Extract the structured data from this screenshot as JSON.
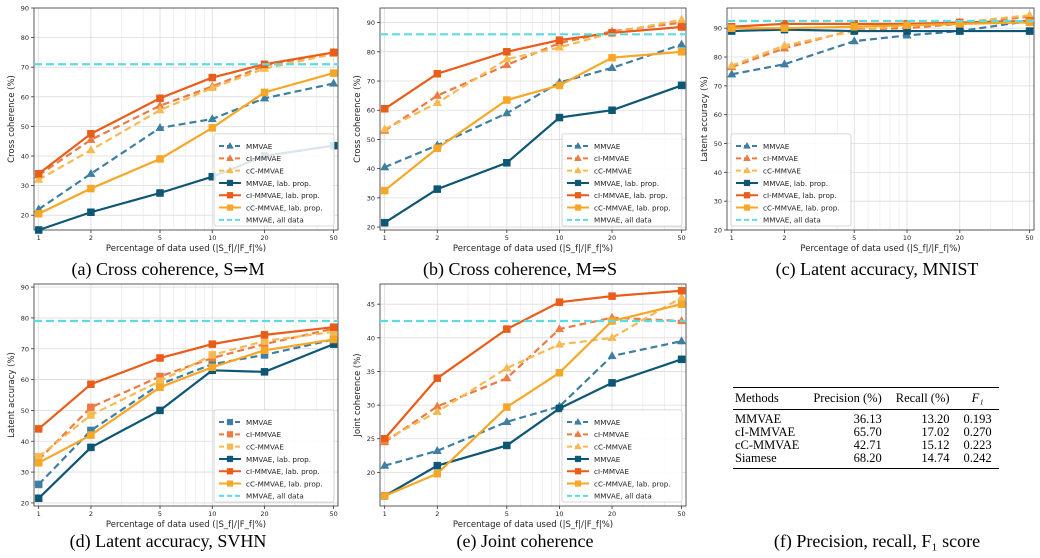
{
  "chart_data": [
    {
      "type": "line",
      "caption": "(a) Cross coherence, S⇒M",
      "ylabel": "Cross coherence (%)",
      "xlabel": "Percentage of data used (|S_f|/|F_f|%)",
      "x": [
        1,
        2,
        5,
        10,
        20,
        50
      ],
      "xticks": [
        "1",
        "2",
        "5",
        "10",
        "20",
        "50"
      ],
      "ylim": [
        15,
        90
      ],
      "yticks": [
        20,
        30,
        40,
        50,
        60,
        70,
        80,
        90
      ],
      "legend": "lower-right",
      "series": [
        {
          "name": "MMVAE",
          "values": [
            22,
            34,
            49.5,
            52.5,
            59.5,
            64.5
          ]
        },
        {
          "name": "cI-MMVAE",
          "values": [
            33.5,
            45.5,
            57,
            63.5,
            70.5,
            75
          ]
        },
        {
          "name": "cC-MMVAE",
          "values": [
            32,
            42,
            55.5,
            63,
            69.5,
            74.5
          ]
        },
        {
          "name": "MMVAE, lab. prop.",
          "values": [
            15,
            21,
            27.5,
            33,
            40,
            43.5
          ]
        },
        {
          "name": "cI-MMVAE, lab. prop.",
          "values": [
            34,
            47.5,
            59.5,
            66.5,
            71,
            75
          ]
        },
        {
          "name": "cC-MMVAE, lab. prop.",
          "values": [
            20.5,
            29,
            39,
            49.5,
            61.5,
            68
          ]
        },
        {
          "name": "MMVAE, all data",
          "values": [
            71,
            71,
            71,
            71,
            71,
            71
          ]
        }
      ]
    },
    {
      "type": "line",
      "caption": "(b) Cross coherence, M⇒S",
      "ylabel": "Cross coherence (%)",
      "xlabel": "Percentage of data used (|S_f|/|F_f|%)",
      "x": [
        1,
        2,
        5,
        10,
        20,
        50
      ],
      "xticks": [
        "1",
        "2",
        "5",
        "10",
        "20",
        "50"
      ],
      "ylim": [
        19,
        95
      ],
      "yticks": [
        20,
        30,
        40,
        50,
        60,
        70,
        80,
        90
      ],
      "legend": "lower-right",
      "series": [
        {
          "name": "MMVAE",
          "values": [
            40.5,
            48,
            59,
            69.5,
            74.5,
            82.5
          ]
        },
        {
          "name": "cI-MMVAE",
          "values": [
            53,
            65,
            75.5,
            83,
            87,
            90
          ]
        },
        {
          "name": "cC-MMVAE",
          "values": [
            53.5,
            62.5,
            77.5,
            81.5,
            86.5,
            91
          ]
        },
        {
          "name": "MMVAE, lab. prop.",
          "values": [
            21.5,
            33,
            42,
            57.5,
            60,
            68.5
          ]
        },
        {
          "name": "cI-MMVAE, lab. prop.",
          "values": [
            60.5,
            72.5,
            80,
            84,
            86.5,
            88.5
          ]
        },
        {
          "name": "cC-MMVAE, lab. prop.",
          "values": [
            32.5,
            47,
            63.5,
            68.5,
            78,
            80
          ]
        },
        {
          "name": "MMVAE, all data",
          "values": [
            86,
            86,
            86,
            86,
            86,
            86
          ]
        }
      ]
    },
    {
      "type": "line",
      "caption": "(c) Latent accuracy, MNIST",
      "ylabel": "Latent accuracy (%)",
      "xlabel": "Percentage of data used (|S_f|/|F_f|%)",
      "x": [
        1,
        2,
        5,
        10,
        20,
        50
      ],
      "xticks": [
        "1",
        "2",
        "5",
        "10",
        "20",
        "50"
      ],
      "ylim": [
        20,
        97
      ],
      "yticks": [
        20,
        30,
        40,
        50,
        60,
        70,
        80,
        90
      ],
      "legend": "lower-left",
      "series": [
        {
          "name": "MMVAE",
          "values": [
            74,
            77.5,
            85.5,
            87.5,
            89,
            92.5
          ]
        },
        {
          "name": "cI-MMVAE",
          "values": [
            76.5,
            83,
            89.5,
            90,
            91.5,
            94
          ]
        },
        {
          "name": "cC-MMVAE",
          "values": [
            77,
            84,
            89,
            91,
            92,
            94.5
          ]
        },
        {
          "name": "MMVAE, lab. prop.",
          "values": [
            89,
            89.5,
            89,
            89,
            89,
            89
          ]
        },
        {
          "name": "cI-MMVAE, lab. prop.",
          "values": [
            90.5,
            91.5,
            91.5,
            91.5,
            92,
            92.5
          ]
        },
        {
          "name": "cC-MMVAE, lab. prop.",
          "values": [
            90,
            90,
            90.5,
            91,
            91.5,
            92
          ]
        },
        {
          "name": "MMVAE, all data",
          "values": [
            92.5,
            92.5,
            92.5,
            92.5,
            92.5,
            92.5
          ]
        }
      ]
    },
    {
      "type": "line",
      "caption": "(d) Latent accuracy, SVHN",
      "ylabel": "Latent accuracy (%)",
      "xlabel": "Percentage of data used (|S_f|/|F_f|%)",
      "x": [
        1,
        2,
        5,
        10,
        20,
        50
      ],
      "xticks": [
        "1",
        "2",
        "5",
        "10",
        "20",
        "50"
      ],
      "ylim": [
        19,
        91
      ],
      "yticks": [
        20,
        30,
        40,
        50,
        60,
        70,
        80,
        90
      ],
      "legend": "lower-right",
      "series": [
        {
          "name": "MMVAE",
          "values": [
            26,
            43.5,
            58.5,
            65,
            68,
            73
          ]
        },
        {
          "name": "cI-MMVAE",
          "values": [
            34,
            51,
            61,
            67,
            71.5,
            76.5
          ]
        },
        {
          "name": "cC-MMVAE",
          "values": [
            35,
            48.5,
            59.5,
            68,
            72.5,
            75.5
          ]
        },
        {
          "name": "MMVAE, lab. prop.",
          "values": [
            21.5,
            38,
            50,
            63,
            62.5,
            71.5
          ]
        },
        {
          "name": "cI-MMVAE, lab. prop.",
          "values": [
            44,
            58.5,
            67,
            71.5,
            74.5,
            77
          ]
        },
        {
          "name": "cC-MMVAE, lab. prop.",
          "values": [
            33,
            42,
            57.5,
            64,
            69.5,
            73
          ]
        },
        {
          "name": "MMVAE, all data",
          "values": [
            79,
            79,
            79,
            79,
            79,
            79
          ]
        }
      ]
    },
    {
      "type": "line",
      "caption": "(e) Joint coherence",
      "ylabel": "Joint coherence (%)",
      "xlabel": "Percentage of data used (|S_f|/|F_f|%)",
      "x": [
        1,
        2,
        5,
        10,
        20,
        50
      ],
      "xticks": [
        "1",
        "2",
        "5",
        "10",
        "20",
        "50"
      ],
      "ylim": [
        15,
        48
      ],
      "yticks": [
        20,
        25,
        30,
        35,
        40,
        45
      ],
      "legend": "lower-right",
      "series": [
        {
          "name": "MMVAE",
          "values": [
            21,
            23.2,
            27.5,
            29.8,
            37.3,
            39.5
          ]
        },
        {
          "name": "cI-MMVAE",
          "values": [
            24.5,
            29.8,
            34,
            41.3,
            43,
            42.5
          ]
        },
        {
          "name": "cC-MMVAE",
          "values": [
            24.8,
            29,
            35.5,
            39,
            40,
            46
          ]
        },
        {
          "name": "MMVAE",
          "values": [
            16.5,
            21,
            24,
            29.5,
            33.3,
            36.8
          ]
        },
        {
          "name": "cI-MMVAE",
          "values": [
            25,
            34,
            41.3,
            45.3,
            46.2,
            47
          ]
        },
        {
          "name": "cC-MMVAE, lab. prop.",
          "values": [
            16.5,
            19.8,
            29.7,
            34.8,
            42.5,
            45
          ]
        },
        {
          "name": "MMVAE, all data",
          "values": [
            42.5,
            42.5,
            42.5,
            42.5,
            42.5,
            42.5
          ]
        }
      ]
    }
  ],
  "styles": {
    "colors": [
      "#3e7fa1",
      "#ee7a43",
      "#f6ba51",
      "#0d5775",
      "#ea5c19",
      "#f6a727",
      "#5cdbe0"
    ],
    "dashed": [
      true,
      true,
      true,
      false,
      false,
      false,
      true
    ],
    "markers": [
      "triangle",
      "triangle",
      "triangle",
      "square",
      "square",
      "square",
      "none"
    ],
    "marker_override_d": "square"
  },
  "table": {
    "caption": "(f) Precision, recall, F₁ score",
    "headers": [
      "Methods",
      "Precision (%)",
      "Recall (%)",
      "F₁"
    ],
    "rows": [
      [
        "MMVAE",
        "36.13",
        "13.20",
        "0.193"
      ],
      [
        "cI-MMVAE",
        "65.70",
        "17.02",
        "0.270"
      ],
      [
        "cC-MMVAE",
        "42.71",
        "15.12",
        "0.223"
      ],
      [
        "Siamese",
        "68.20",
        "14.74",
        "0.242"
      ]
    ]
  }
}
